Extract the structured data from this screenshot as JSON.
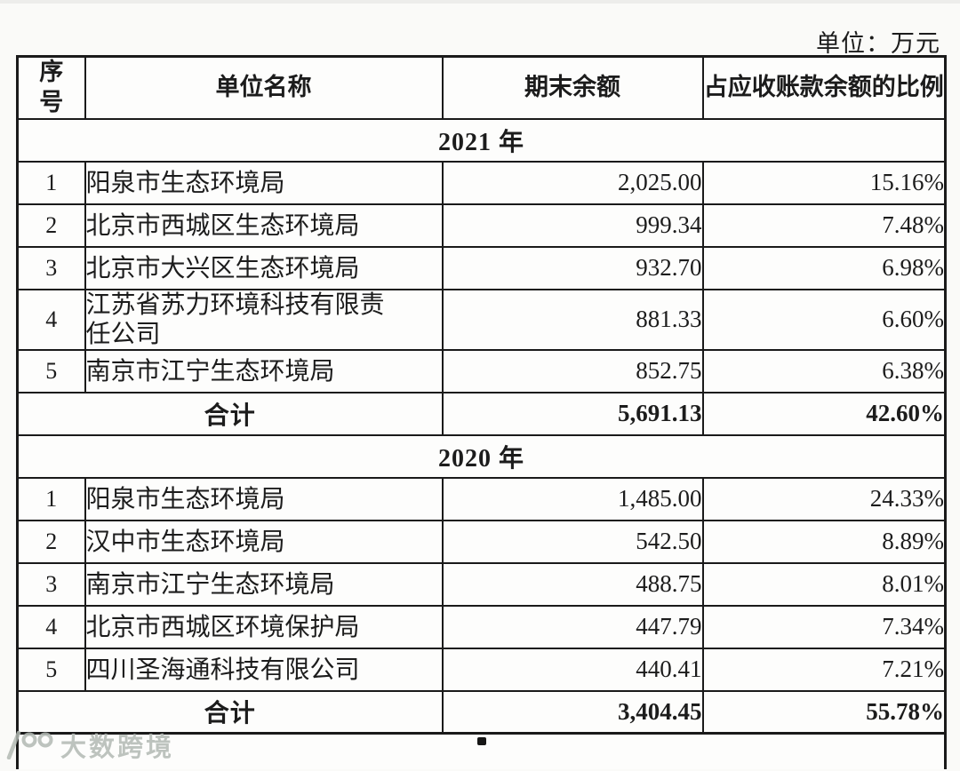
{
  "page": {
    "unit_label": "单位：万元"
  },
  "table": {
    "headers": {
      "seq": "序号",
      "name": "单位名称",
      "balance": "期末余额",
      "ratio": "占应收账款余额的比例"
    },
    "sections": [
      {
        "year": "2021 年",
        "rows": [
          {
            "no": "1",
            "name": "阳泉市生态环境局",
            "balance": "2,025.00",
            "ratio": "15.16%"
          },
          {
            "no": "2",
            "name": "北京市西城区生态环境局",
            "balance": "999.34",
            "ratio": "7.48%"
          },
          {
            "no": "3",
            "name": "北京市大兴区生态环境局",
            "balance": "932.70",
            "ratio": "6.98%"
          },
          {
            "no": "4",
            "name": "江苏省苏力环境科技有限责任公司",
            "balance": "881.33",
            "ratio": "6.60%"
          },
          {
            "no": "5",
            "name": "南京市江宁生态环境局",
            "balance": "852.75",
            "ratio": "6.38%"
          }
        ],
        "total": {
          "label": "合计",
          "balance": "5,691.13",
          "ratio": "42.60%"
        }
      },
      {
        "year": "2020 年",
        "rows": [
          {
            "no": "1",
            "name": "阳泉市生态环境局",
            "balance": "1,485.00",
            "ratio": "24.33%"
          },
          {
            "no": "2",
            "name": "汉中市生态环境局",
            "balance": "542.50",
            "ratio": "8.89%"
          },
          {
            "no": "3",
            "name": "南京市江宁生态环境局",
            "balance": "488.75",
            "ratio": "8.01%"
          },
          {
            "no": "4",
            "name": "北京市西城区环境保护局",
            "balance": "447.79",
            "ratio": "7.34%"
          },
          {
            "no": "5",
            "name": "四川圣海通科技有限公司",
            "balance": "440.41",
            "ratio": "7.21%"
          }
        ],
        "total": {
          "label": "合计",
          "balance": "3,404.45",
          "ratio": "55.78%"
        }
      }
    ]
  },
  "watermark": {
    "text": "大数跨境"
  }
}
